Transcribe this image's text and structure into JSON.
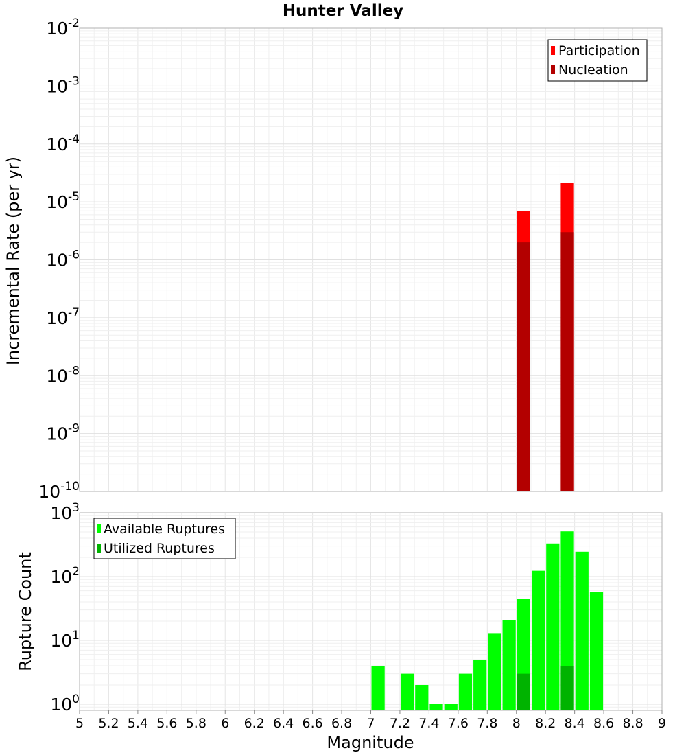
{
  "chart_data": [
    {
      "type": "bar",
      "title": "Hunter Valley",
      "ylabel": "Incremental Rate (per yr)",
      "xlabel": "",
      "x_range": [
        5,
        9
      ],
      "ylim": [
        1e-10,
        0.01
      ],
      "y_scale": "log",
      "y_ticks": [
        {
          "base": "10",
          "exp": "-10",
          "value": 1e-10
        },
        {
          "base": "10",
          "exp": "-9",
          "value": 1e-09
        },
        {
          "base": "10",
          "exp": "-8",
          "value": 1e-08
        },
        {
          "base": "10",
          "exp": "-7",
          "value": 1e-07
        },
        {
          "base": "10",
          "exp": "-6",
          "value": 1e-06
        },
        {
          "base": "10",
          "exp": "-5",
          "value": 1e-05
        },
        {
          "base": "10",
          "exp": "-4",
          "value": 0.0001
        },
        {
          "base": "10",
          "exp": "-3",
          "value": 0.001
        },
        {
          "base": "10",
          "exp": "-2",
          "value": 0.01
        }
      ],
      "grid": true,
      "legend_position": "top-right",
      "bin_width": 0.1,
      "series": [
        {
          "name": "Participation",
          "color": "#ff0000",
          "x": [
            8.05,
            8.35
          ],
          "values": [
            7e-06,
            2.1e-05
          ]
        },
        {
          "name": "Nucleation",
          "color": "#b30000",
          "x": [
            8.05,
            8.35
          ],
          "values": [
            2e-06,
            3e-06
          ]
        }
      ]
    },
    {
      "type": "bar",
      "title": "",
      "ylabel": "Rupture Count",
      "xlabel": "Magnitude",
      "x_range": [
        5,
        9
      ],
      "x_ticks": [
        "5",
        "5.2",
        "5.4",
        "5.6",
        "5.8",
        "6",
        "6.2",
        "6.4",
        "6.6",
        "6.8",
        "7",
        "7.2",
        "7.4",
        "7.6",
        "7.8",
        "8",
        "8.2",
        "8.4",
        "8.6",
        "8.8",
        "9"
      ],
      "ylim": [
        0.8,
        1000
      ],
      "y_scale": "log",
      "y_ticks": [
        {
          "base": "10",
          "exp": "0",
          "value": 1
        },
        {
          "base": "10",
          "exp": "1",
          "value": 10
        },
        {
          "base": "10",
          "exp": "2",
          "value": 100
        },
        {
          "base": "10",
          "exp": "3",
          "value": 1000
        }
      ],
      "grid": true,
      "legend_position": "top-left",
      "bin_width": 0.1,
      "series": [
        {
          "name": "Available Ruptures",
          "color": "#00ff00",
          "x": [
            7.05,
            7.25,
            7.35,
            7.45,
            7.55,
            7.65,
            7.75,
            7.85,
            7.95,
            8.05,
            8.15,
            8.25,
            8.35,
            8.45,
            8.55
          ],
          "values": [
            4,
            3,
            2,
            1,
            1,
            3,
            5,
            13,
            21,
            45,
            123,
            330,
            510,
            245,
            57
          ]
        },
        {
          "name": "Utilized Ruptures",
          "color": "#00b300",
          "x": [
            8.05,
            8.35
          ],
          "values": [
            3,
            4
          ]
        }
      ]
    }
  ]
}
